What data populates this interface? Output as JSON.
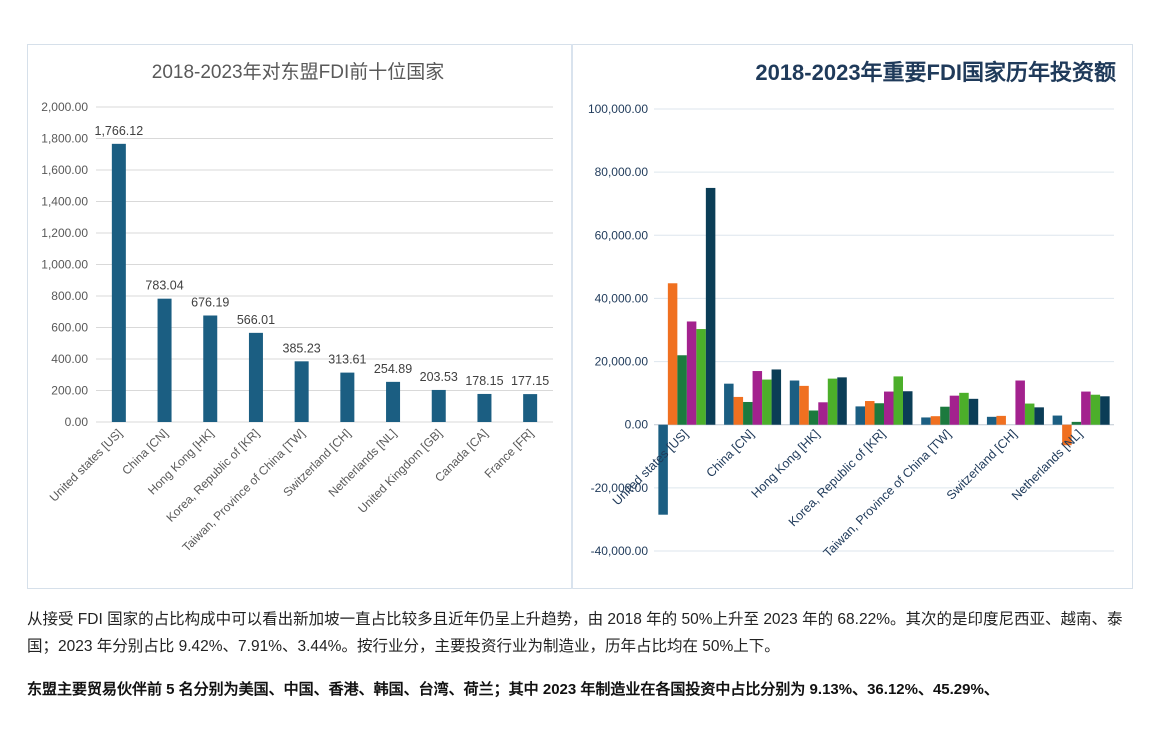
{
  "chart_data": [
    {
      "type": "bar",
      "title": "2018-2023年对东盟FDI前十位国家",
      "categories": [
        "United states [US]",
        "China [CN]",
        "Hong Kong [HK]",
        "Korea, Republic of [KR]",
        "Taiwan, Province of China [TW]",
        "Switzerland [CH]",
        "Netherlands [NL]",
        "United Kingdom [GB]",
        "Canada [CA]",
        "France [FR]"
      ],
      "values": [
        1766.12,
        783.04,
        676.19,
        566.01,
        385.23,
        313.61,
        254.89,
        203.53,
        178.15,
        177.15
      ],
      "value_labels": [
        "1,766.12",
        "783.04",
        "676.19",
        "566.01",
        "385.23",
        "313.61",
        "254.89",
        "203.53",
        "178.15",
        "177.15"
      ],
      "ylim": [
        0,
        2000
      ],
      "yticks": [
        "0.00",
        "200.00",
        "400.00",
        "600.00",
        "800.00",
        "1,000.00",
        "1,200.00",
        "1,400.00",
        "1,600.00",
        "1,800.00",
        "2,000.00"
      ],
      "grid": true,
      "color": "#1b5e82"
    },
    {
      "type": "bar",
      "title": "2018-2023年重要FDI国家历年投资额",
      "categories": [
        "United states [US]",
        "China [CN]",
        "Hong Kong [HK]",
        "Korea, Republic of [KR]",
        "Taiwan, Province of China [TW]",
        "Switzerland [CH]",
        "Netherlands [NL]"
      ],
      "ylim": [
        -40000,
        100000
      ],
      "yticks": [
        "-40,000.00",
        "-20,000.00",
        "0.00",
        "20,000.00",
        "40,000.00",
        "60,000.00",
        "80,000.00",
        "100,000.00"
      ],
      "grid": true,
      "series": [
        {
          "color": "#1b5e82",
          "values": [
            -28500,
            13000,
            14000,
            5800,
            2300,
            2500,
            2900
          ]
        },
        {
          "color": "#f07020",
          "values": [
            44800,
            8800,
            12300,
            7500,
            2700,
            2800,
            -6500
          ]
        },
        {
          "color": "#1c7a3e",
          "values": [
            22000,
            7200,
            4500,
            6800,
            5700,
            0,
            900
          ]
        },
        {
          "color": "#a3228e",
          "values": [
            32700,
            17000,
            7100,
            10500,
            9200,
            14000,
            10500
          ]
        },
        {
          "color": "#4caf2a",
          "values": [
            30300,
            14300,
            14600,
            15300,
            10100,
            6700,
            9500
          ]
        },
        {
          "color": "#0b3d56",
          "values": [
            75000,
            17500,
            15000,
            10600,
            8200,
            5500,
            9000
          ]
        }
      ]
    }
  ],
  "text": {
    "para1": "从接受 FDI 国家的占比构成中可以看出新加坡一直占比较多且近年仍呈上升趋势，由 2018 年的 50%上升至 2023 年的 68.22%。其次的是印度尼西亚、越南、泰国；2023 年分别占比 9.42%、7.91%、3.44%。按行业分，主要投资行业为制造业，历年占比均在 50%上下。",
    "para2": "东盟主要贸易伙伴前 5 名分别为美国、中国、香港、韩国、台湾、荷兰；其中 2023 年制造业在各国投资中占比分别为 9.13%、36.12%、45.29%、"
  }
}
